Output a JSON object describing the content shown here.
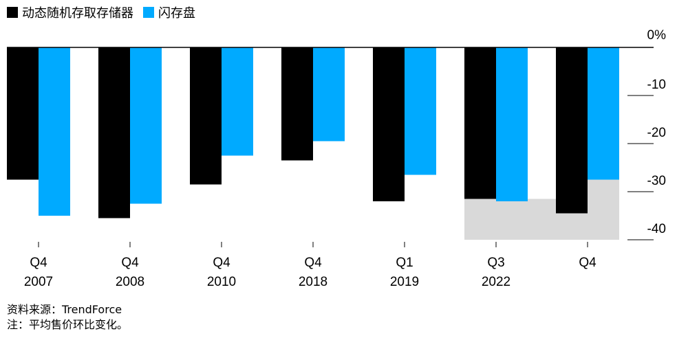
{
  "chart_data": {
    "type": "bar",
    "legend_position": "top-left",
    "categories": [
      [
        "Q4",
        "2007"
      ],
      [
        "Q4",
        "2008"
      ],
      [
        "Q4",
        "2010"
      ],
      [
        "Q4",
        "2018"
      ],
      [
        "Q1",
        "2019"
      ],
      [
        "Q3",
        "2022"
      ],
      [
        "Q4",
        ""
      ]
    ],
    "series": [
      {
        "name": "动态随机存取存储器",
        "color": "#000000",
        "values": [
          -27.5,
          -35.5,
          -28.5,
          -23.5,
          -32,
          -31.5,
          -34.5
        ]
      },
      {
        "name": "闪存盘",
        "color": "#00aaff",
        "values": [
          -35,
          -32.5,
          -22.5,
          -19.5,
          -26.5,
          -32,
          -27.5
        ]
      }
    ],
    "y_ticks": [
      0,
      -10,
      -20,
      -30,
      -40
    ],
    "y_tick_labels": [
      "0%",
      "-10",
      "-20",
      "-30",
      "-40"
    ],
    "ylim": [
      -40,
      0
    ],
    "shaded_region": {
      "from_category": 5,
      "to_category": 6,
      "color": "#d9d9d9"
    },
    "grid": false
  },
  "footer": {
    "source": "资料来源：TrendForce",
    "note": "注：平均售价环比变化。"
  }
}
